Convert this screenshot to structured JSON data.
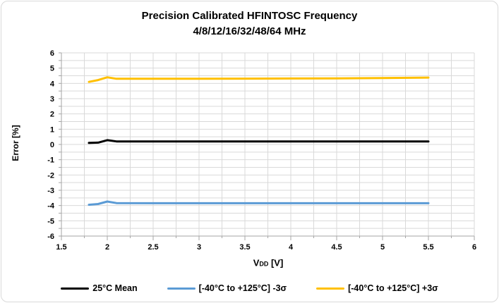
{
  "title": {
    "line1": "Precision Calibrated HFINTOSC Frequency",
    "line2": "4/8/12/16/32/48/64 MHz"
  },
  "axes": {
    "y_title": "Error [%]",
    "x_title": {
      "main": "V",
      "sub": "DD",
      "rest": " [V]"
    }
  },
  "colors": {
    "grid": "#d9d9d9",
    "axis": "#a6a6a6",
    "border": "#d9d9d9",
    "background": "#ffffff",
    "mean": "#000000",
    "minus3sigma": "#5b9bd5",
    "plus3sigma": "#ffc000"
  },
  "chart_data": {
    "type": "line",
    "title": "Precision Calibrated HFINTOSC Frequency 4/8/12/16/32/48/64 MHz",
    "xlabel": "VDD [V]",
    "ylabel": "Error [%]",
    "xlim": [
      1.5,
      6
    ],
    "ylim": [
      -6,
      6
    ],
    "x_major_step": 0.5,
    "x_minor_step": 0.25,
    "y_major_step": 1,
    "y_minor_step": 0.5,
    "x_ticks": [
      1.5,
      2,
      2.5,
      3,
      3.5,
      4,
      4.5,
      5,
      5.5,
      6
    ],
    "x_ticklabels": [
      "1.5",
      "2",
      "2.5",
      "3",
      "3.5",
      "4",
      "4.5",
      "5",
      "5.5",
      "6"
    ],
    "y_ticks": [
      -6,
      -5,
      -4,
      -3,
      -2,
      -1,
      0,
      1,
      2,
      3,
      4,
      5,
      6
    ],
    "y_ticklabels": [
      "-6",
      "-5",
      "-4",
      "-3",
      "-2",
      "-1",
      "0",
      "1",
      "2",
      "3",
      "4",
      "5",
      "6"
    ],
    "grid": true,
    "legend_position": "bottom-center",
    "series": [
      {
        "name": "25°C Mean",
        "color": "#000000",
        "points": [
          [
            1.8,
            0.1
          ],
          [
            1.9,
            0.12
          ],
          [
            2.0,
            0.28
          ],
          [
            2.1,
            0.2
          ],
          [
            2.5,
            0.2
          ],
          [
            3.0,
            0.2
          ],
          [
            3.5,
            0.2
          ],
          [
            4.0,
            0.2
          ],
          [
            4.5,
            0.2
          ],
          [
            5.0,
            0.2
          ],
          [
            5.5,
            0.2
          ]
        ]
      },
      {
        "name": "[-40°C to +125°C]  -3σ",
        "color": "#5b9bd5",
        "points": [
          [
            1.8,
            -3.95
          ],
          [
            1.9,
            -3.9
          ],
          [
            2.0,
            -3.74
          ],
          [
            2.1,
            -3.84
          ],
          [
            2.5,
            -3.85
          ],
          [
            3.0,
            -3.85
          ],
          [
            3.5,
            -3.85
          ],
          [
            4.0,
            -3.85
          ],
          [
            4.5,
            -3.85
          ],
          [
            5.0,
            -3.85
          ],
          [
            5.5,
            -3.85
          ]
        ]
      },
      {
        "name": "[-40°C to +125°C] +3σ",
        "color": "#ffc000",
        "points": [
          [
            1.8,
            4.1
          ],
          [
            1.9,
            4.22
          ],
          [
            2.0,
            4.4
          ],
          [
            2.1,
            4.3
          ],
          [
            2.5,
            4.3
          ],
          [
            3.0,
            4.3
          ],
          [
            3.5,
            4.31
          ],
          [
            4.0,
            4.32
          ],
          [
            4.5,
            4.33
          ],
          [
            5.0,
            4.35
          ],
          [
            5.5,
            4.38
          ]
        ]
      }
    ]
  }
}
